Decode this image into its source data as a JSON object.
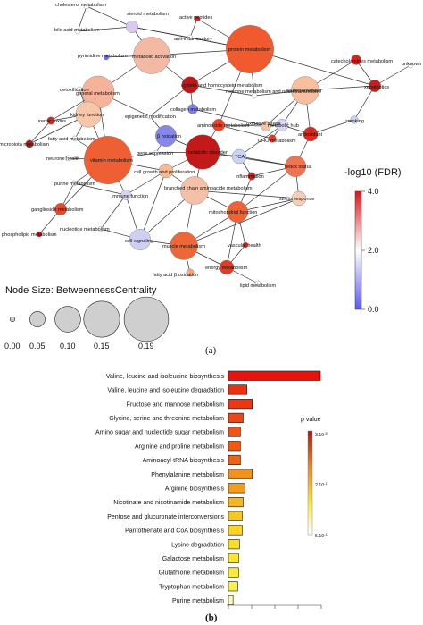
{
  "panel_a": {
    "label": "(a)",
    "nodes": [
      {
        "id": "cholesterol",
        "label": "cholesterol metabolism",
        "color": "#ffffff",
        "bc": 0.0
      },
      {
        "id": "steroid",
        "label": "steroid metabolism",
        "color": "#dcc7ef",
        "bc": 0.03
      },
      {
        "id": "bileacid",
        "label": "bile acid metabolism",
        "color": "#ffffff",
        "bc": 0.0
      },
      {
        "id": "pyrimidine",
        "label": "pyrimidine metabolism",
        "color": "#6a6cf0",
        "bc": 0.0
      },
      {
        "id": "antiinflam",
        "label": "anti-inflammatory",
        "color": "#ffffff",
        "bc": 0.0
      },
      {
        "id": "activepep",
        "label": "active peptides",
        "color": "#d8241f",
        "bc": 0.0
      },
      {
        "id": "protein",
        "label": "protein metabolism",
        "color": "#f05a2e",
        "bc": 0.19
      },
      {
        "id": "metactiv",
        "label": "metabolic activation",
        "color": "#f3b9a3",
        "bc": 0.14
      },
      {
        "id": "catechol",
        "label": "catecholamines metabolism",
        "color": "#d5251e",
        "bc": 0.02
      },
      {
        "id": "unknown",
        "label": "unknown",
        "color": "#ffffff",
        "bc": 0.0
      },
      {
        "id": "xeno",
        "label": "xenobiotics",
        "color": "#c81e1e",
        "bc": 0.03
      },
      {
        "id": "detox",
        "label": "detoxification",
        "color": "#ffffff",
        "bc": 0.0
      },
      {
        "id": "general",
        "label": "general metabolism",
        "color": "#f6b39b",
        "bc": 0.12
      },
      {
        "id": "cystein",
        "label": "cystein and homocystein metabolism",
        "color": "#c01818",
        "bc": 0.05
      },
      {
        "id": "neurone_nt",
        "label": "neurone metabolism and neurotransmitters",
        "color": "#ffffff",
        "bc": 0.0
      },
      {
        "id": "neurotrans",
        "label": "neurotransmitter",
        "color": "#f7bf9f",
        "bc": 0.1
      },
      {
        "id": "uremic",
        "label": "uremic toxins",
        "color": "#d6281e",
        "bc": 0.01
      },
      {
        "id": "kidney",
        "label": "kidney function",
        "color": "#f8c6a8",
        "bc": 0.09
      },
      {
        "id": "epigenetic",
        "label": "epigenetic modification",
        "color": "#ffffff",
        "bc": 0.0
      },
      {
        "id": "collagen",
        "label": "collagen metabolism",
        "color": "#7f80e8",
        "bc": 0.02
      },
      {
        "id": "oxidstress",
        "label": "oxidative stress",
        "color": "#f3c2a8",
        "bc": 0.02
      },
      {
        "id": "microbiota",
        "label": "microbiota metabolism",
        "color": "#c01818",
        "bc": 0.01
      },
      {
        "id": "fattyacid",
        "label": "fatty acid metabolism",
        "color": "#ffffff",
        "bc": 0.0
      },
      {
        "id": "betaox",
        "label": "β oxidation",
        "color": "#8587ea",
        "bc": 0.07
      },
      {
        "id": "aminoacids",
        "label": "aminoacids metabolism",
        "color": "#e9462b",
        "bc": 0.03
      },
      {
        "id": "metabhub",
        "label": "metabolic hub",
        "color": "#d8d6f4",
        "bc": 0.03
      },
      {
        "id": "antioxidant",
        "label": "antioxidant",
        "color": "#d92a1f",
        "bc": 0.04
      },
      {
        "id": "smoking",
        "label": "smoking",
        "color": "#cfd0f3",
        "bc": 0.01
      },
      {
        "id": "neuronehealth",
        "label": "neurone health",
        "color": "#ffffff",
        "bc": 0.0
      },
      {
        "id": "vitamin",
        "label": "vitamin metabolism",
        "color": "#ee6033",
        "bc": 0.19
      },
      {
        "id": "geneexpr",
        "label": "gene expression",
        "color": "#ffffff",
        "bc": 0.0
      },
      {
        "id": "metabdisorder",
        "label": "metabolic disorder",
        "color": "#c21a18",
        "bc": 0.13
      },
      {
        "id": "cho",
        "label": "CHO metabolism",
        "color": "#e63a2a",
        "bc": 0.01
      },
      {
        "id": "tca",
        "label": "TCA",
        "color": "#c9d4f4",
        "bc": 0.04
      },
      {
        "id": "redox",
        "label": "redox status",
        "color": "#ee7454",
        "bc": 0.07
      },
      {
        "id": "purine",
        "label": "purine metabolism",
        "color": "#ffffff",
        "bc": 0.0
      },
      {
        "id": "cellgrowth",
        "label": "cell growth and proliferation",
        "color": "#f7ba95",
        "bc": 0.04
      },
      {
        "id": "inflammation",
        "label": "inflammation",
        "color": "#d8231e",
        "bc": 0.01
      },
      {
        "id": "immune",
        "label": "immune function",
        "color": "#d9d3f0",
        "bc": 0.02
      },
      {
        "id": "bcaa",
        "label": "branched chain aminoacide metabolism",
        "color": "#f5c0a8",
        "bc": 0.1
      },
      {
        "id": "stress",
        "label": "stress response",
        "color": "#f4cdb8",
        "bc": 0.04
      },
      {
        "id": "ganglioside",
        "label": "ganglioside metabolism",
        "color": "#e44a2c",
        "bc": 0.03
      },
      {
        "id": "mito",
        "label": "mitochondrial function",
        "color": "#ef6235",
        "bc": 0.07
      },
      {
        "id": "nucleotide",
        "label": "nucleotide metabolism",
        "color": "#ffffff",
        "bc": 0.0
      },
      {
        "id": "phospho",
        "label": "phospholipid metabolism",
        "color": "#c01818",
        "bc": 0.0
      },
      {
        "id": "cellsignal",
        "label": "cell signaling",
        "color": "#cfcff4",
        "bc": 0.07
      },
      {
        "id": "muscle",
        "label": "muscle metabolism",
        "color": "#ec6839",
        "bc": 0.1
      },
      {
        "id": "vascular",
        "label": "vascular health",
        "color": "#d8231e",
        "bc": 0.0
      },
      {
        "id": "energy",
        "label": "energy metabolism",
        "color": "#e33b27",
        "bc": 0.04
      },
      {
        "id": "lipid",
        "label": "lipid metabolism",
        "color": "#ffffff",
        "bc": 0.0
      },
      {
        "id": "fattyacidox",
        "label": "fatty acid β oxidation",
        "color": "#f5a87e",
        "bc": 0.01
      }
    ],
    "edges": [
      [
        "cholesterol",
        "steroid"
      ],
      [
        "cholesterol",
        "bileacid"
      ],
      [
        "steroid",
        "bileacid"
      ],
      [
        "steroid",
        "antiinflam"
      ],
      [
        "steroid",
        "metactiv"
      ],
      [
        "steroid",
        "protein"
      ],
      [
        "antiinflam",
        "activepep"
      ],
      [
        "activepep",
        "protein"
      ],
      [
        "antiinflam",
        "protein"
      ],
      [
        "metactiv",
        "general"
      ],
      [
        "metactiv",
        "cystein"
      ],
      [
        "metactiv",
        "protein"
      ],
      [
        "pyrimidine",
        "metactiv"
      ],
      [
        "protein",
        "cystein"
      ],
      [
        "protein",
        "neurone_nt"
      ],
      [
        "protein",
        "xeno"
      ],
      [
        "protein",
        "aminoacids"
      ],
      [
        "catechol",
        "xeno"
      ],
      [
        "xeno",
        "unknown"
      ],
      [
        "xeno",
        "neurotrans"
      ],
      [
        "xeno",
        "smoking"
      ],
      [
        "catechol",
        "neurotrans"
      ],
      [
        "detox",
        "kidney"
      ],
      [
        "general",
        "kidney"
      ],
      [
        "general",
        "epigenetic"
      ],
      [
        "general",
        "vitamin"
      ],
      [
        "general",
        "uremic"
      ],
      [
        "cystein",
        "collagen"
      ],
      [
        "cystein",
        "neurone_nt"
      ],
      [
        "cystein",
        "epigenetic"
      ],
      [
        "neurone_nt",
        "neurotrans"
      ],
      [
        "neurotrans",
        "oxidstress"
      ],
      [
        "neurotrans",
        "antioxidant"
      ],
      [
        "neurotrans",
        "metabhub"
      ],
      [
        "uremic",
        "kidney"
      ],
      [
        "uremic",
        "microbiota"
      ],
      [
        "kidney",
        "microbiota"
      ],
      [
        "kidney",
        "fattyacid"
      ],
      [
        "kidney",
        "vitamin"
      ],
      [
        "epigenetic",
        "betaox"
      ],
      [
        "collagen",
        "oxidstress"
      ],
      [
        "oxidstress",
        "aminoacids"
      ],
      [
        "oxidstress",
        "metabhub"
      ],
      [
        "betaox",
        "geneexpr"
      ],
      [
        "betaox",
        "metabdisorder"
      ],
      [
        "aminoacids",
        "metabdisorder"
      ],
      [
        "aminoacids",
        "cho"
      ],
      [
        "metabhub",
        "cho"
      ],
      [
        "metabhub",
        "antioxidant"
      ],
      [
        "metabhub",
        "tca"
      ],
      [
        "antioxidant",
        "smoking"
      ],
      [
        "antioxidant",
        "redox"
      ],
      [
        "neuronehealth",
        "vitamin"
      ],
      [
        "fattyacid",
        "vitamin"
      ],
      [
        "vitamin",
        "geneexpr"
      ],
      [
        "vitamin",
        "purine"
      ],
      [
        "vitamin",
        "immune"
      ],
      [
        "vitamin",
        "cellgrowth"
      ],
      [
        "vitamin",
        "ganglioside"
      ],
      [
        "geneexpr",
        "metabdisorder"
      ],
      [
        "metabdisorder",
        "tca"
      ],
      [
        "metabdisorder",
        "bcaa"
      ],
      [
        "metabdisorder",
        "cellgrowth"
      ],
      [
        "metabdisorder",
        "redox"
      ],
      [
        "tca",
        "inflammation"
      ],
      [
        "tca",
        "redox"
      ],
      [
        "redox",
        "inflammation"
      ],
      [
        "redox",
        "stress"
      ],
      [
        "redox",
        "mito"
      ],
      [
        "purine",
        "immune"
      ],
      [
        "purine",
        "ganglioside"
      ],
      [
        "cellgrowth",
        "immune"
      ],
      [
        "cellgrowth",
        "cellsignal"
      ],
      [
        "cellgrowth",
        "bcaa"
      ],
      [
        "immune",
        "nucleotide"
      ],
      [
        "immune",
        "cellsignal"
      ],
      [
        "bcaa",
        "mito"
      ],
      [
        "bcaa",
        "muscle"
      ],
      [
        "bcaa",
        "cellsignal"
      ],
      [
        "bcaa",
        "stress"
      ],
      [
        "ganglioside",
        "phospho"
      ],
      [
        "nucleotide",
        "cellsignal"
      ],
      [
        "cellsignal",
        "muscle"
      ],
      [
        "mito",
        "stress"
      ],
      [
        "mito",
        "muscle"
      ],
      [
        "mito",
        "vascular"
      ],
      [
        "mito",
        "energy"
      ],
      [
        "muscle",
        "energy"
      ],
      [
        "muscle",
        "fattyacidox"
      ],
      [
        "energy",
        "lipid"
      ],
      [
        "energy",
        "vascular"
      ],
      [
        "stress",
        "muscle"
      ],
      [
        "inflammation",
        "mito"
      ]
    ],
    "colorbar": {
      "title": "-log10 (FDR)",
      "ticks": [
        "4.0",
        "2.0",
        "0.0"
      ],
      "min": 0.0,
      "max": 4.0
    },
    "size_legend": {
      "title": "Node Size: BetweennessCentrality",
      "values": [
        "0.00",
        "0.05",
        "0.10",
        "0.15",
        "0.19"
      ]
    }
  },
  "chart_data": {
    "type": "bar",
    "orientation": "horizontal",
    "panel_label": "(b)",
    "categories": [
      "Valine, leucine and isoleucine biosynthesis",
      "Valine, leucine and isoleucine degradation",
      "Fructose and mannose metabolism",
      "Glycine, serine and threonine metabolism",
      "Amino sugar and nucleotide sugar metabolism",
      "Arginine and proline metabolism",
      "Aminoacyl-tRNA biosynthesis",
      "Phenylalanine metabolism",
      "Arginine biosynthesis",
      "Nicotinate and nicotinamide metabolism",
      "Pentose and glucuronate interconversions",
      "Pantothenate and CoA biosynthesis",
      "Lysine degradation",
      "Galactose metabolism",
      "Glutathione metabolism",
      "Tryptophan metabolism",
      "Purine metabolism"
    ],
    "values": [
      1.0,
      0.2,
      0.26,
      0.16,
      0.13,
      0.13,
      0.13,
      0.26,
      0.18,
      0.16,
      0.15,
      0.15,
      0.12,
      0.11,
      0.11,
      0.1,
      0.05
    ],
    "bar_colors": [
      "#e8130f",
      "#ee3012",
      "#ed3613",
      "#ee4715",
      "#f05516",
      "#f05a17",
      "#f06218",
      "#f3921b",
      "#f49a1c",
      "#f7b51e",
      "#f8c71f",
      "#fad420",
      "#fbde26",
      "#fde62c",
      "#fdec3a",
      "#fdf148",
      "#fef9bb"
    ],
    "legend": {
      "title": "p value",
      "ticks": [
        "3.10",
        "2.10",
        "5.10"
      ],
      "exponents": [
        "-5",
        "-1",
        "-1"
      ]
    }
  }
}
